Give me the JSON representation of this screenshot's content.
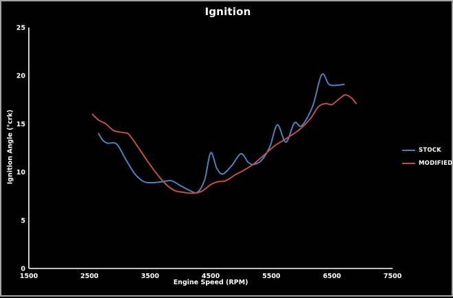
{
  "window": {
    "background": "#000000",
    "border_color": "#a6a6a6",
    "text_color": "#ffffff"
  },
  "chart_data": {
    "type": "line",
    "title": "Ignition",
    "xlabel": "Engine Speed (RPM)",
    "ylabel": "Ignition Angle (°crk)",
    "xlim": [
      1500,
      7500
    ],
    "ylim": [
      0,
      25
    ],
    "x_ticks": [
      1500,
      2500,
      3500,
      4500,
      5500,
      6500,
      7500
    ],
    "y_ticks": [
      0,
      5,
      10,
      15,
      20,
      25
    ],
    "grid": false,
    "legend_position": "right",
    "axis_color": "#ffffff",
    "series": [
      {
        "name": "STOCK",
        "color": "#4F81BD",
        "points": [
          [
            2650,
            14.0
          ],
          [
            2720,
            13.3
          ],
          [
            2800,
            13.0
          ],
          [
            2950,
            12.9
          ],
          [
            3100,
            11.3
          ],
          [
            3250,
            9.8
          ],
          [
            3400,
            9.0
          ],
          [
            3550,
            8.9
          ],
          [
            3700,
            9.0
          ],
          [
            3850,
            9.1
          ],
          [
            4000,
            8.6
          ],
          [
            4150,
            8.1
          ],
          [
            4280,
            7.9
          ],
          [
            4400,
            9.2
          ],
          [
            4500,
            12.0
          ],
          [
            4600,
            10.4
          ],
          [
            4700,
            9.8
          ],
          [
            4850,
            10.7
          ],
          [
            5000,
            11.9
          ],
          [
            5120,
            11.0
          ],
          [
            5220,
            10.8
          ],
          [
            5350,
            11.3
          ],
          [
            5480,
            12.7
          ],
          [
            5600,
            14.9
          ],
          [
            5740,
            13.1
          ],
          [
            5880,
            15.1
          ],
          [
            6000,
            14.8
          ],
          [
            6180,
            16.8
          ],
          [
            6330,
            20.1
          ],
          [
            6450,
            19.1
          ],
          [
            6570,
            19.0
          ],
          [
            6700,
            19.1
          ]
        ]
      },
      {
        "name": "MODIFIED",
        "color": "#C0504D",
        "points": [
          [
            2550,
            16.0
          ],
          [
            2650,
            15.4
          ],
          [
            2770,
            15.0
          ],
          [
            2900,
            14.3
          ],
          [
            3050,
            14.1
          ],
          [
            3150,
            13.9
          ],
          [
            3300,
            12.6
          ],
          [
            3450,
            11.2
          ],
          [
            3600,
            9.9
          ],
          [
            3750,
            8.8
          ],
          [
            3900,
            8.1
          ],
          [
            4050,
            7.9
          ],
          [
            4200,
            7.8
          ],
          [
            4350,
            8.0
          ],
          [
            4500,
            8.7
          ],
          [
            4620,
            9.0
          ],
          [
            4750,
            9.1
          ],
          [
            4900,
            9.7
          ],
          [
            5050,
            10.2
          ],
          [
            5200,
            10.8
          ],
          [
            5350,
            11.6
          ],
          [
            5550,
            12.7
          ],
          [
            5700,
            13.3
          ],
          [
            5850,
            13.9
          ],
          [
            6000,
            14.6
          ],
          [
            6150,
            15.6
          ],
          [
            6280,
            16.8
          ],
          [
            6400,
            17.1
          ],
          [
            6500,
            17.0
          ],
          [
            6620,
            17.6
          ],
          [
            6720,
            18.0
          ],
          [
            6820,
            17.7
          ],
          [
            6900,
            17.1
          ]
        ]
      }
    ]
  }
}
